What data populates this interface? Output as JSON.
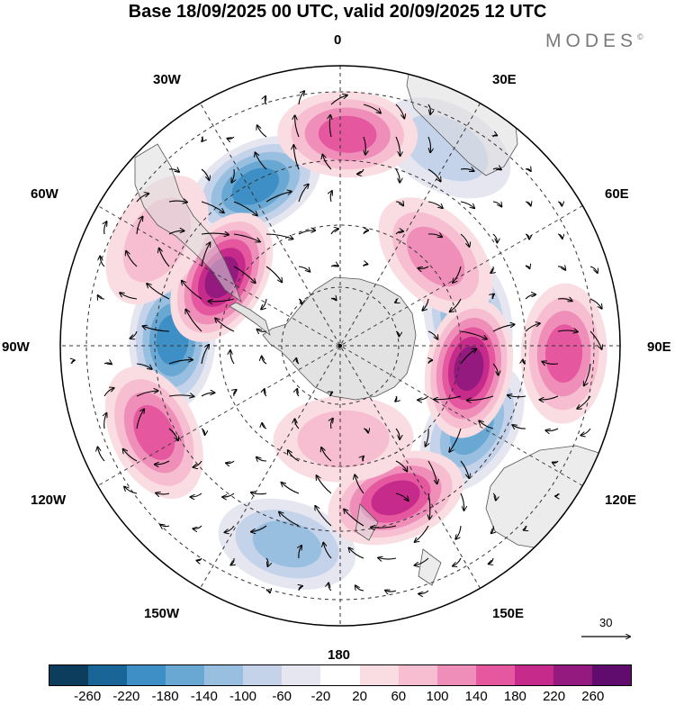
{
  "title": "Base 18/09/2025 00 UTC, valid 20/09/2025 12 UTC",
  "brand": {
    "name": "MODES",
    "mark": "©"
  },
  "longitude_labels": {
    "lon_0": "0",
    "lon_30e": "30E",
    "lon_60e": "60E",
    "lon_90e": "90E",
    "lon_120e": "120E",
    "lon_150e": "150E",
    "lon_180": "180",
    "lon_150w": "150W",
    "lon_120w": "120W",
    "lon_90w": "90W",
    "lon_60w": "60W",
    "lon_30w": "30W"
  },
  "vector_scale": {
    "value": "30"
  },
  "colorbar": {
    "colors": [
      "#0d3d5c",
      "#1a6598",
      "#3d8fc5",
      "#6aa8d4",
      "#98bfe0",
      "#c4d3ea",
      "#e6e6f1",
      "#ffffff",
      "#f9dde2",
      "#f6bed0",
      "#ef8fb9",
      "#e5589f",
      "#c62a8a",
      "#951a80",
      "#5f0c6e"
    ],
    "tick_labels": [
      "-260",
      "-220",
      "-180",
      "-140",
      "-100",
      "-60",
      "-20",
      "20",
      "60",
      "100",
      "140",
      "180",
      "220",
      "260"
    ]
  },
  "anomaly_centers": [
    {
      "kind": "negative",
      "strength": -190,
      "lon": -28,
      "colat": 58
    },
    {
      "kind": "negative",
      "strength": -200,
      "lon": -88,
      "colat": 54
    },
    {
      "kind": "negative",
      "strength": -170,
      "lon": 78,
      "colat": 42
    },
    {
      "kind": "negative",
      "strength": -150,
      "lon": 122,
      "colat": 50
    },
    {
      "kind": "negative",
      "strength": -120,
      "lon": -165,
      "colat": 66
    },
    {
      "kind": "negative",
      "strength": -70,
      "lon": 28,
      "colat": 72
    },
    {
      "kind": "positive",
      "strength": 150,
      "lon": 2,
      "colat": 68
    },
    {
      "kind": "positive",
      "strength": 110,
      "lon": 47,
      "colat": 42
    },
    {
      "kind": "positive",
      "strength": 250,
      "lon": -60,
      "colat": 44
    },
    {
      "kind": "positive",
      "strength": 80,
      "lon": -60,
      "colat": 68
    },
    {
      "kind": "positive",
      "strength": 220,
      "lon": 100,
      "colat": 42
    },
    {
      "kind": "positive",
      "strength": 160,
      "lon": 92,
      "colat": 72
    },
    {
      "kind": "positive",
      "strength": 150,
      "lon": -115,
      "colat": 66
    },
    {
      "kind": "positive",
      "strength": 180,
      "lon": 160,
      "colat": 52
    },
    {
      "kind": "positive",
      "strength": 60,
      "lon": 178,
      "colat": 30
    }
  ]
}
